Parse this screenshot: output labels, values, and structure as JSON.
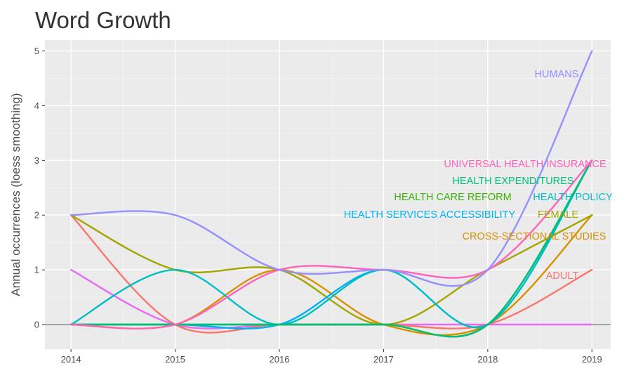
{
  "chart_data": {
    "type": "line",
    "title": "Word Growth",
    "xlabel": "",
    "ylabel": "Annual occurrences (loess smoothing)",
    "x": [
      2014,
      2015,
      2016,
      2017,
      2018,
      2019
    ],
    "x_ticks": [
      "2014",
      "2015",
      "2016",
      "2017",
      "2018",
      "2019"
    ],
    "y_ticks": [
      "0",
      "1",
      "2",
      "3",
      "4",
      "5"
    ],
    "xlim": [
      2013.75,
      2019.18
    ],
    "ylim": [
      -0.45,
      5.2
    ],
    "grid": true,
    "legend": "none (direct labels at line ends)",
    "series": [
      {
        "name": "HUMANS",
        "color": "#9590FF",
        "values": [
          2,
          2,
          1,
          1,
          1,
          5
        ]
      },
      {
        "name": "UNIVERSAL HEALTH INSURANCE",
        "color": "#FF62BC",
        "values": [
          0,
          0,
          1,
          1,
          1,
          3
        ]
      },
      {
        "name": "HEALTH EXPENDITURES",
        "color": "#00BF7D",
        "values": [
          0,
          0,
          0,
          0,
          0,
          3
        ]
      },
      {
        "name": "HEALTH CARE REFORM",
        "color": "#39B600",
        "values": [
          0,
          0,
          0,
          0,
          0,
          3
        ]
      },
      {
        "name": "HEALTH POLICY",
        "color": "#00BFC4",
        "values": [
          0,
          1,
          0,
          1,
          0,
          3
        ]
      },
      {
        "name": "HEALTH SERVICES ACCESSIBILITY",
        "color": "#00B0F6",
        "values": [
          0,
          0,
          0,
          1,
          0,
          3
        ]
      },
      {
        "name": "FEMALE",
        "color": "#A3A500",
        "values": [
          2,
          1,
          1,
          0,
          1,
          2
        ]
      },
      {
        "name": "CROSS-SECTIONAL STUDIES",
        "color": "#D89000",
        "values": [
          0,
          0,
          1,
          0,
          0,
          2
        ]
      },
      {
        "name": "ADULT",
        "color": "#F8766D",
        "values": [
          2,
          0,
          0,
          0,
          0,
          1
        ]
      },
      {
        "name": "",
        "color": "#E76BF3",
        "values": [
          1,
          0,
          0,
          0,
          0,
          0
        ]
      }
    ]
  }
}
